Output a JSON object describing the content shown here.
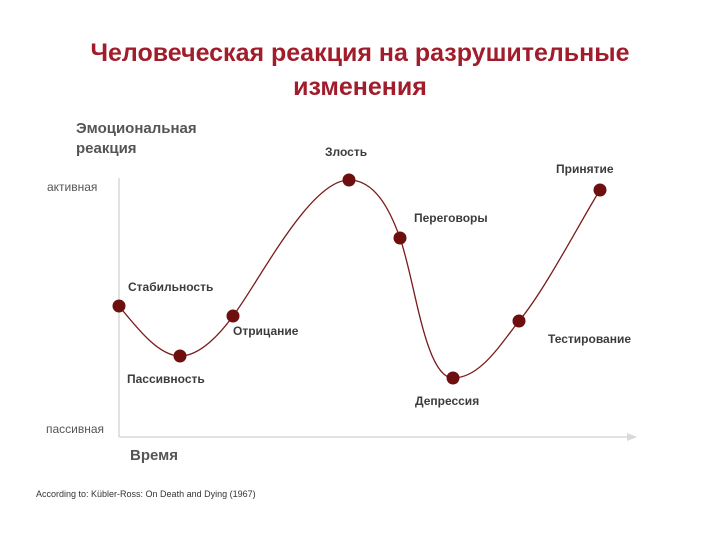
{
  "title": "Человеческая реакция на разрушительные изменения",
  "y_axis": {
    "title_line1": "Эмоциональная",
    "title_line2": "реакция",
    "high_label": "активная",
    "low_label": "пассивная"
  },
  "x_axis": {
    "title": "Время"
  },
  "stages": [
    {
      "label": "Стабильность"
    },
    {
      "label": "Пассивность"
    },
    {
      "label": "Отрицание"
    },
    {
      "label": "Злость"
    },
    {
      "label": "Переговоры"
    },
    {
      "label": "Депрессия"
    },
    {
      "label": "Тестирование"
    },
    {
      "label": "Принятие"
    }
  ],
  "source": "According to: Kübler-Ross: On Death and Dying (1967)",
  "colors": {
    "title": "#a11d2b",
    "curve": "#7a1b1b",
    "marker": "#6e0f0f",
    "axis": "#d9d9d9"
  }
}
